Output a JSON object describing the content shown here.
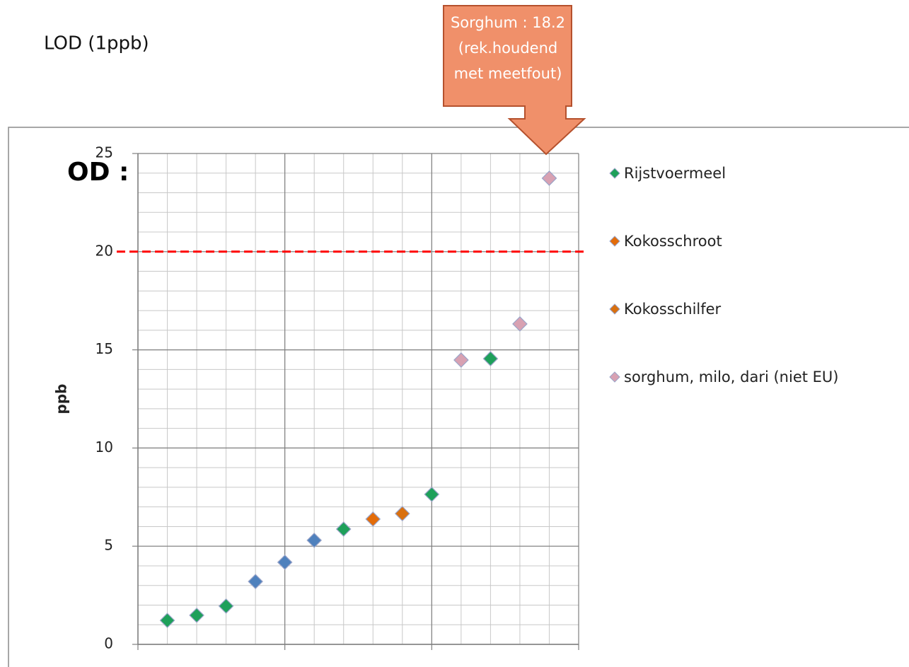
{
  "texts": {
    "lod": "LOD (1ppb)",
    "od": "OD :"
  },
  "chart_data": {
    "type": "scatter",
    "ylabel": "ppb",
    "xlim": [
      0,
      15
    ],
    "xticks": [
      0,
      5,
      10,
      15
    ],
    "ylim": [
      0,
      25
    ],
    "yticks": [
      0,
      5,
      10,
      15,
      20,
      25
    ],
    "grid": true,
    "minor_step_x": 1,
    "minor_step_y": 1,
    "threshold": {
      "value": 20,
      "color": "#ff0000"
    },
    "annotation": [
      "Sorghum : 18.2",
      "(rek.houdend",
      "met meetfout)"
    ],
    "legend": "right",
    "series": [
      {
        "name": "Rijstvoermeel",
        "color": "#1ea05a",
        "x": [
          1,
          2,
          3,
          7,
          10,
          12
        ],
        "values": [
          1.22,
          1.48,
          1.95,
          5.87,
          7.64,
          14.55
        ]
      },
      {
        "name": "Kokosschroot",
        "color": "#e36c09",
        "x": [
          8
        ],
        "values": [
          6.38
        ]
      },
      {
        "name": "Kokosschilfer",
        "color": "#d9700f",
        "x": [
          9
        ],
        "values": [
          6.66
        ]
      },
      {
        "name": "sorghum, milo, dari (niet EU)",
        "color": "#d8a1b2",
        "x": [
          11,
          13,
          14
        ],
        "values": [
          14.48,
          16.32,
          23.74
        ]
      },
      {
        "color": "#4f81bd",
        "x": [
          4,
          5,
          6
        ],
        "values": [
          3.2,
          4.18,
          5.3
        ]
      }
    ]
  }
}
